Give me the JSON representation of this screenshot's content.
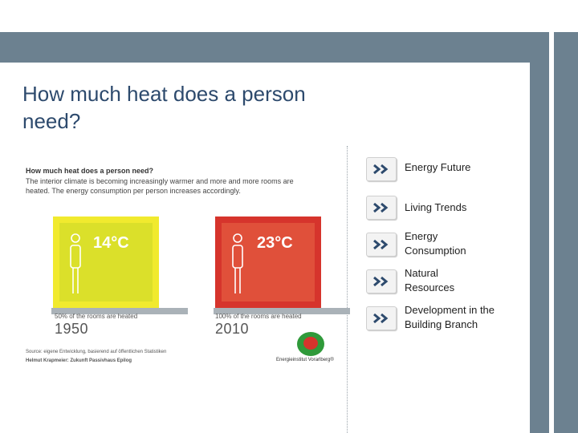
{
  "title": "How much heat does a person need?",
  "infographic": {
    "heading": "How much heat does a person need?",
    "text": "The interior climate is becoming increasingly warmer and more and more rooms are heated. The energy consumption per person increases accordingly.",
    "rooms": [
      {
        "temp": "14°C",
        "caption": "50% of the rooms are heated",
        "year": "1950",
        "color": "#dbe02a"
      },
      {
        "temp": "23°C",
        "caption": "100% of the rooms are heated",
        "year": "2010",
        "color": "#e0503a"
      }
    ],
    "source_line1": "Source: eigene Entwicklung, basierend auf öffentlichen Statistiken",
    "source_line2": "Helmut Krapmeier: Zukunft Passivhaus Epilog",
    "logo_text": "Energieinstitut Vorarlberg®"
  },
  "nav": {
    "items": [
      {
        "label": "Energy Future"
      },
      {
        "label": "Living Trends"
      },
      {
        "label": "Energy Consumption"
      },
      {
        "label": "Natural Resources"
      },
      {
        "label": "Development in the Building Branch"
      }
    ],
    "arrow_icon": "double-chevron-right-icon",
    "arrow_color": "#2d4a6d"
  },
  "colors": {
    "band": "#6c8190",
    "title": "#2d4a6d"
  }
}
